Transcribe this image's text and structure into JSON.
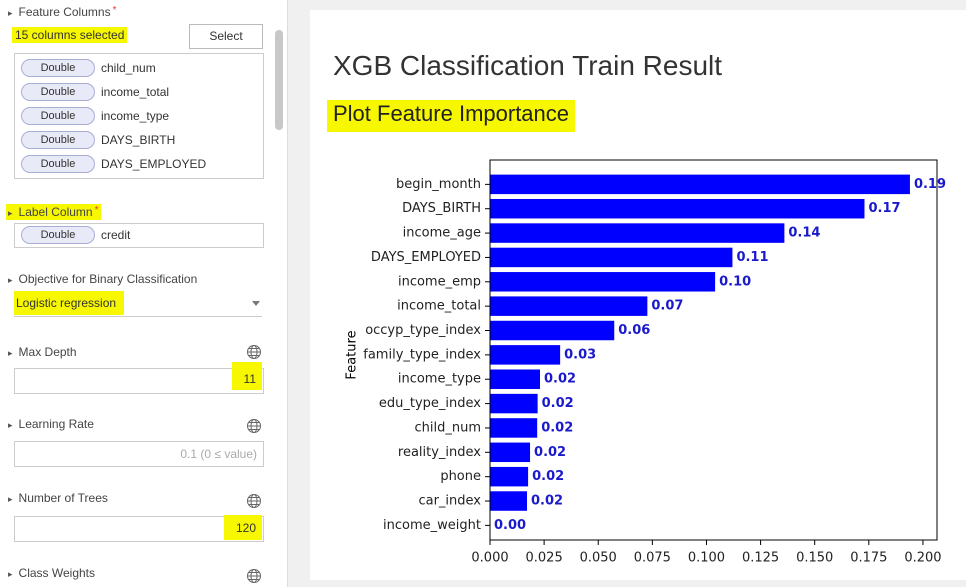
{
  "sidebar": {
    "feature_columns": {
      "label": "Feature Columns",
      "required": "*",
      "summary": "15 columns selected",
      "button": "Select",
      "columns": [
        {
          "type": "Double",
          "name": "child_num"
        },
        {
          "type": "Double",
          "name": "income_total"
        },
        {
          "type": "Double",
          "name": "income_type"
        },
        {
          "type": "Double",
          "name": "DAYS_BIRTH"
        },
        {
          "type": "Double",
          "name": "DAYS_EMPLOYED"
        }
      ]
    },
    "label_column": {
      "label": "Label Column",
      "required": "*",
      "column": {
        "type": "Double",
        "name": "credit"
      }
    },
    "objective": {
      "label": "Objective for Binary Classification",
      "value": "Logistic regression"
    },
    "max_depth": {
      "label": "Max Depth",
      "value": "11"
    },
    "learning_rate": {
      "label": "Learning Rate",
      "placeholder": "0.1 (0 ≤ value)"
    },
    "num_trees": {
      "label": "Number of Trees",
      "value": "120"
    },
    "class_weights": {
      "label": "Class Weights"
    }
  },
  "result": {
    "title": "XGB Classification Train Result",
    "section": "Plot Feature Importance"
  },
  "chart_data": {
    "type": "bar",
    "orientation": "horizontal",
    "ylabel": "Feature",
    "color": "#0000ff",
    "label_color": "#1a1acc",
    "categories": [
      "begin_month",
      "DAYS_BIRTH",
      "income_age",
      "DAYS_EMPLOYED",
      "income_emp",
      "income_total",
      "occyp_type_index",
      "family_type_index",
      "income_type",
      "edu_type_index",
      "child_num",
      "reality_index",
      "phone",
      "car_index",
      "income_weight"
    ],
    "values": [
      0.194,
      0.173,
      0.136,
      0.112,
      0.104,
      0.0727,
      0.0574,
      0.0324,
      0.0231,
      0.022,
      0.0218,
      0.0185,
      0.0176,
      0.0171,
      0
    ],
    "value_labels": [
      "0.19",
      "0.17",
      "0.14",
      "0.11",
      "0.10",
      "0.07",
      "0.06",
      "0.03",
      "0.02",
      "0.02",
      "0.02",
      "0.02",
      "0.02",
      "0.02",
      "0.00"
    ],
    "xlim": [
      0,
      0.2065
    ],
    "xticks": [
      {
        "value": 0,
        "label": "0.000"
      },
      0.025,
      {
        "value": 0.05,
        "label": "0.050"
      },
      0.075,
      {
        "value": 0.1,
        "label": "0.100"
      },
      0.125,
      {
        "value": 0.15,
        "label": "0.150"
      },
      0.175,
      {
        "value": 0.2,
        "label": "0.200"
      }
    ],
    "grid": false
  }
}
